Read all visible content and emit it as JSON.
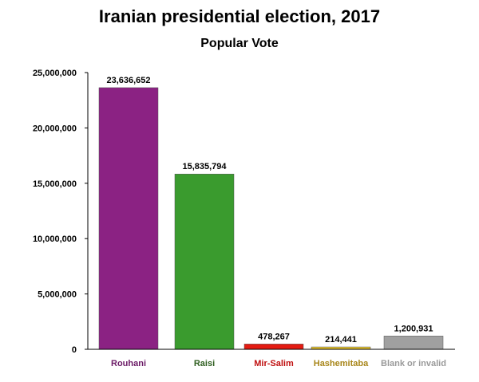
{
  "chart_data": {
    "type": "bar",
    "title": "Iranian presidential election, 2017",
    "subtitle": "Popular Vote",
    "categories": [
      "Rouhani",
      "Raisi",
      "Mir-Salim",
      "Hashemitaba",
      "Blank or invalid"
    ],
    "values": [
      23636652,
      15835794,
      478267,
      214441,
      1200931
    ],
    "data_labels": [
      "23,636,652",
      "15,835,794",
      "478,267",
      "214,441",
      "1,200,931"
    ],
    "bar_colors": [
      "#8b2283",
      "#3a9b2e",
      "#e41b12",
      "#e3c12e",
      "#a0a0a0"
    ],
    "label_colors": [
      "#6b1a66",
      "#2e5e1f",
      "#c01010",
      "#a8861a",
      "#9a9a9a"
    ],
    "ylim": [
      0,
      25000000
    ],
    "yticks": [
      0,
      5000000,
      10000000,
      15000000,
      20000000,
      25000000
    ],
    "ytick_labels": [
      "0",
      "5,000,000",
      "10,000,000",
      "15,000,000",
      "20,000,000",
      "25,000,000"
    ],
    "grid": false,
    "legend": "none"
  }
}
